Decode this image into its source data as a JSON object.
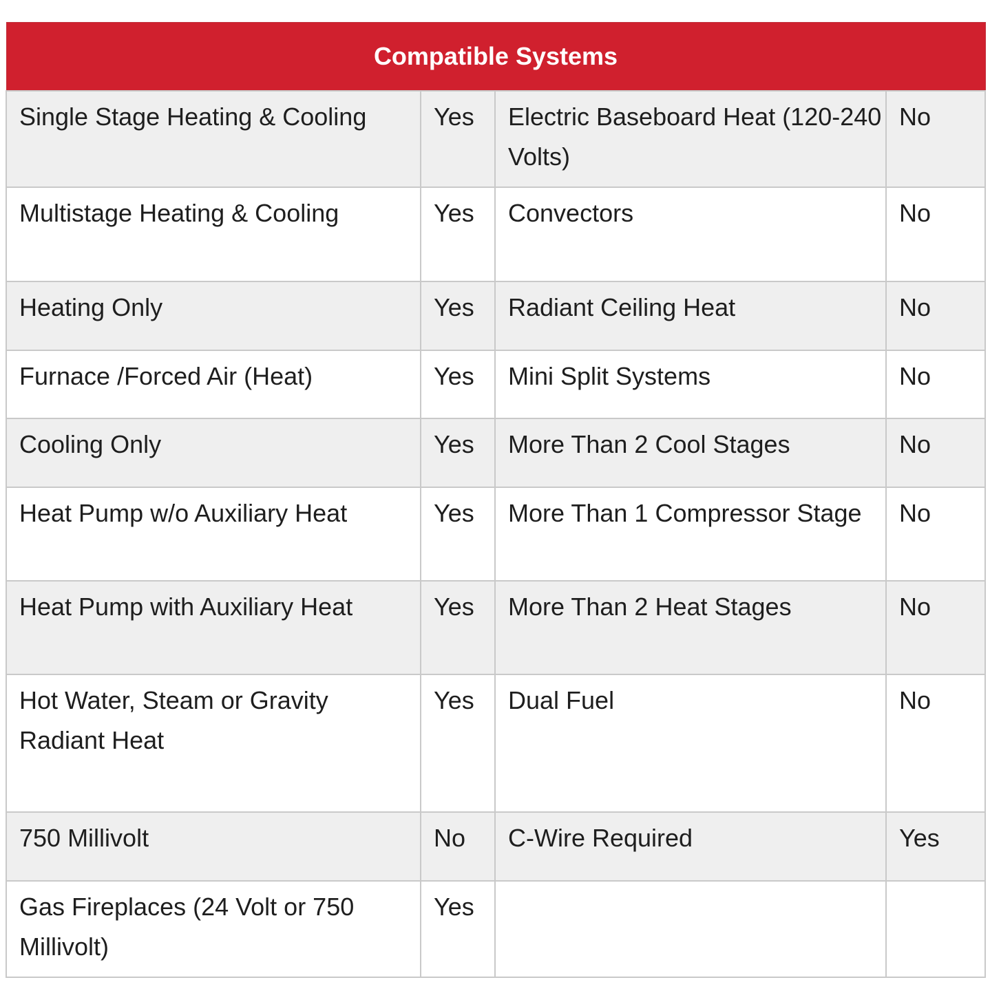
{
  "title": "Compatible Systems",
  "colors": {
    "header": "#d0202e",
    "row_alt": "#efefef",
    "border": "#c9c9c9"
  },
  "rows": [
    {
      "left": "Single Stage Heating & Cooling",
      "left_value": "Yes",
      "right": "Electric Baseboard Heat (120-240 Volts)",
      "right_value": "No"
    },
    {
      "left": "Multistage Heating & Cooling",
      "left_value": "Yes",
      "right": "Convectors",
      "right_value": "No"
    },
    {
      "left": "Heating Only",
      "left_value": "Yes",
      "right": "Radiant Ceiling Heat",
      "right_value": "No"
    },
    {
      "left": "Furnace /Forced Air (Heat)",
      "left_value": "Yes",
      "right": "Mini Split Systems",
      "right_value": "No"
    },
    {
      "left": "Cooling Only",
      "left_value": "Yes",
      "right": "More Than 2 Cool Stages",
      "right_value": "No"
    },
    {
      "left": "Heat Pump w/o Auxiliary Heat",
      "left_value": "Yes",
      "right": "More Than 1 Compressor Stage",
      "right_value": "No"
    },
    {
      "left": "Heat Pump with Auxiliary Heat",
      "left_value": "Yes",
      "right": "More Than 2 Heat Stages",
      "right_value": "No"
    },
    {
      "left": "Hot Water, Steam or Gravity Radiant Heat",
      "left_value": "Yes",
      "right": "Dual Fuel",
      "right_value": "No"
    },
    {
      "left": "750 Millivolt",
      "left_value": "No",
      "right": "C-Wire Required",
      "right_value": "Yes"
    },
    {
      "left": "Gas Fireplaces (24 Volt or 750 Millivolt)",
      "left_value": "Yes",
      "right": "",
      "right_value": ""
    }
  ]
}
